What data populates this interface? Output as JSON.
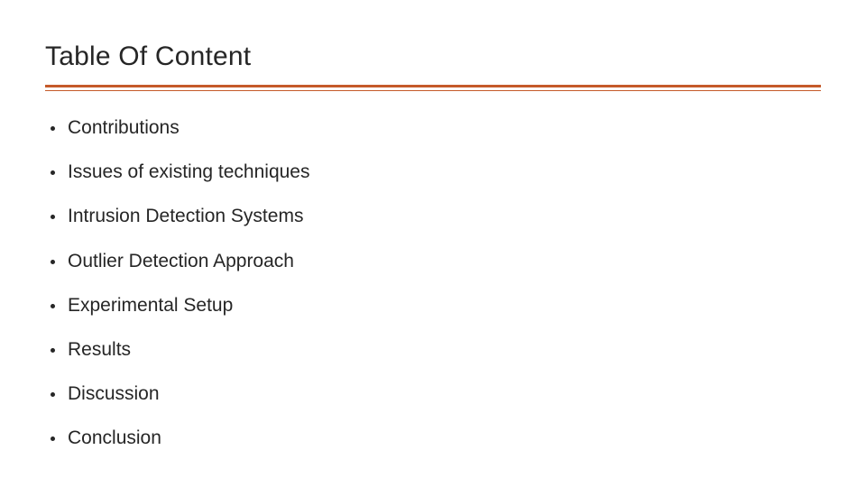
{
  "title": "Table Of Content",
  "rule_color_primary": "#c55a2a",
  "rule_color_secondary": "#c55a2a",
  "text_color": "#262626",
  "background_color": "#ffffff",
  "title_fontsize": 30,
  "item_fontsize": 21,
  "items": [
    "Contributions",
    "Issues of existing techniques",
    "Intrusion Detection Systems",
    "Outlier Detection Approach",
    "Experimental Setup",
    "Results",
    "Discussion",
    "Conclusion"
  ]
}
